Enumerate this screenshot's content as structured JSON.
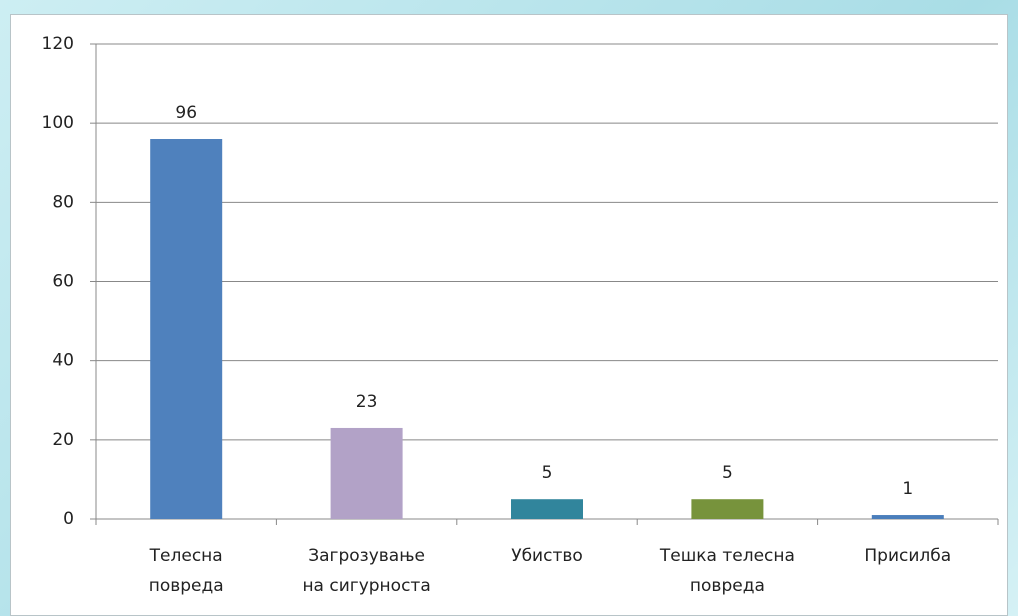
{
  "chart_data": {
    "type": "bar",
    "categories": [
      "Телесна\nповреда",
      "Загрозување\nна сигурноста",
      "Убиство",
      "Тешка телесна\nповреда",
      "Присилба"
    ],
    "values": [
      96,
      23,
      5,
      5,
      1
    ],
    "colors": [
      "#4f81bd",
      "#b2a2c7",
      "#31859c",
      "#77933c",
      "#4a7ebb"
    ],
    "ylim": [
      0,
      120
    ],
    "yticks": [
      0,
      20,
      40,
      60,
      80,
      100,
      120
    ],
    "grid": true
  }
}
